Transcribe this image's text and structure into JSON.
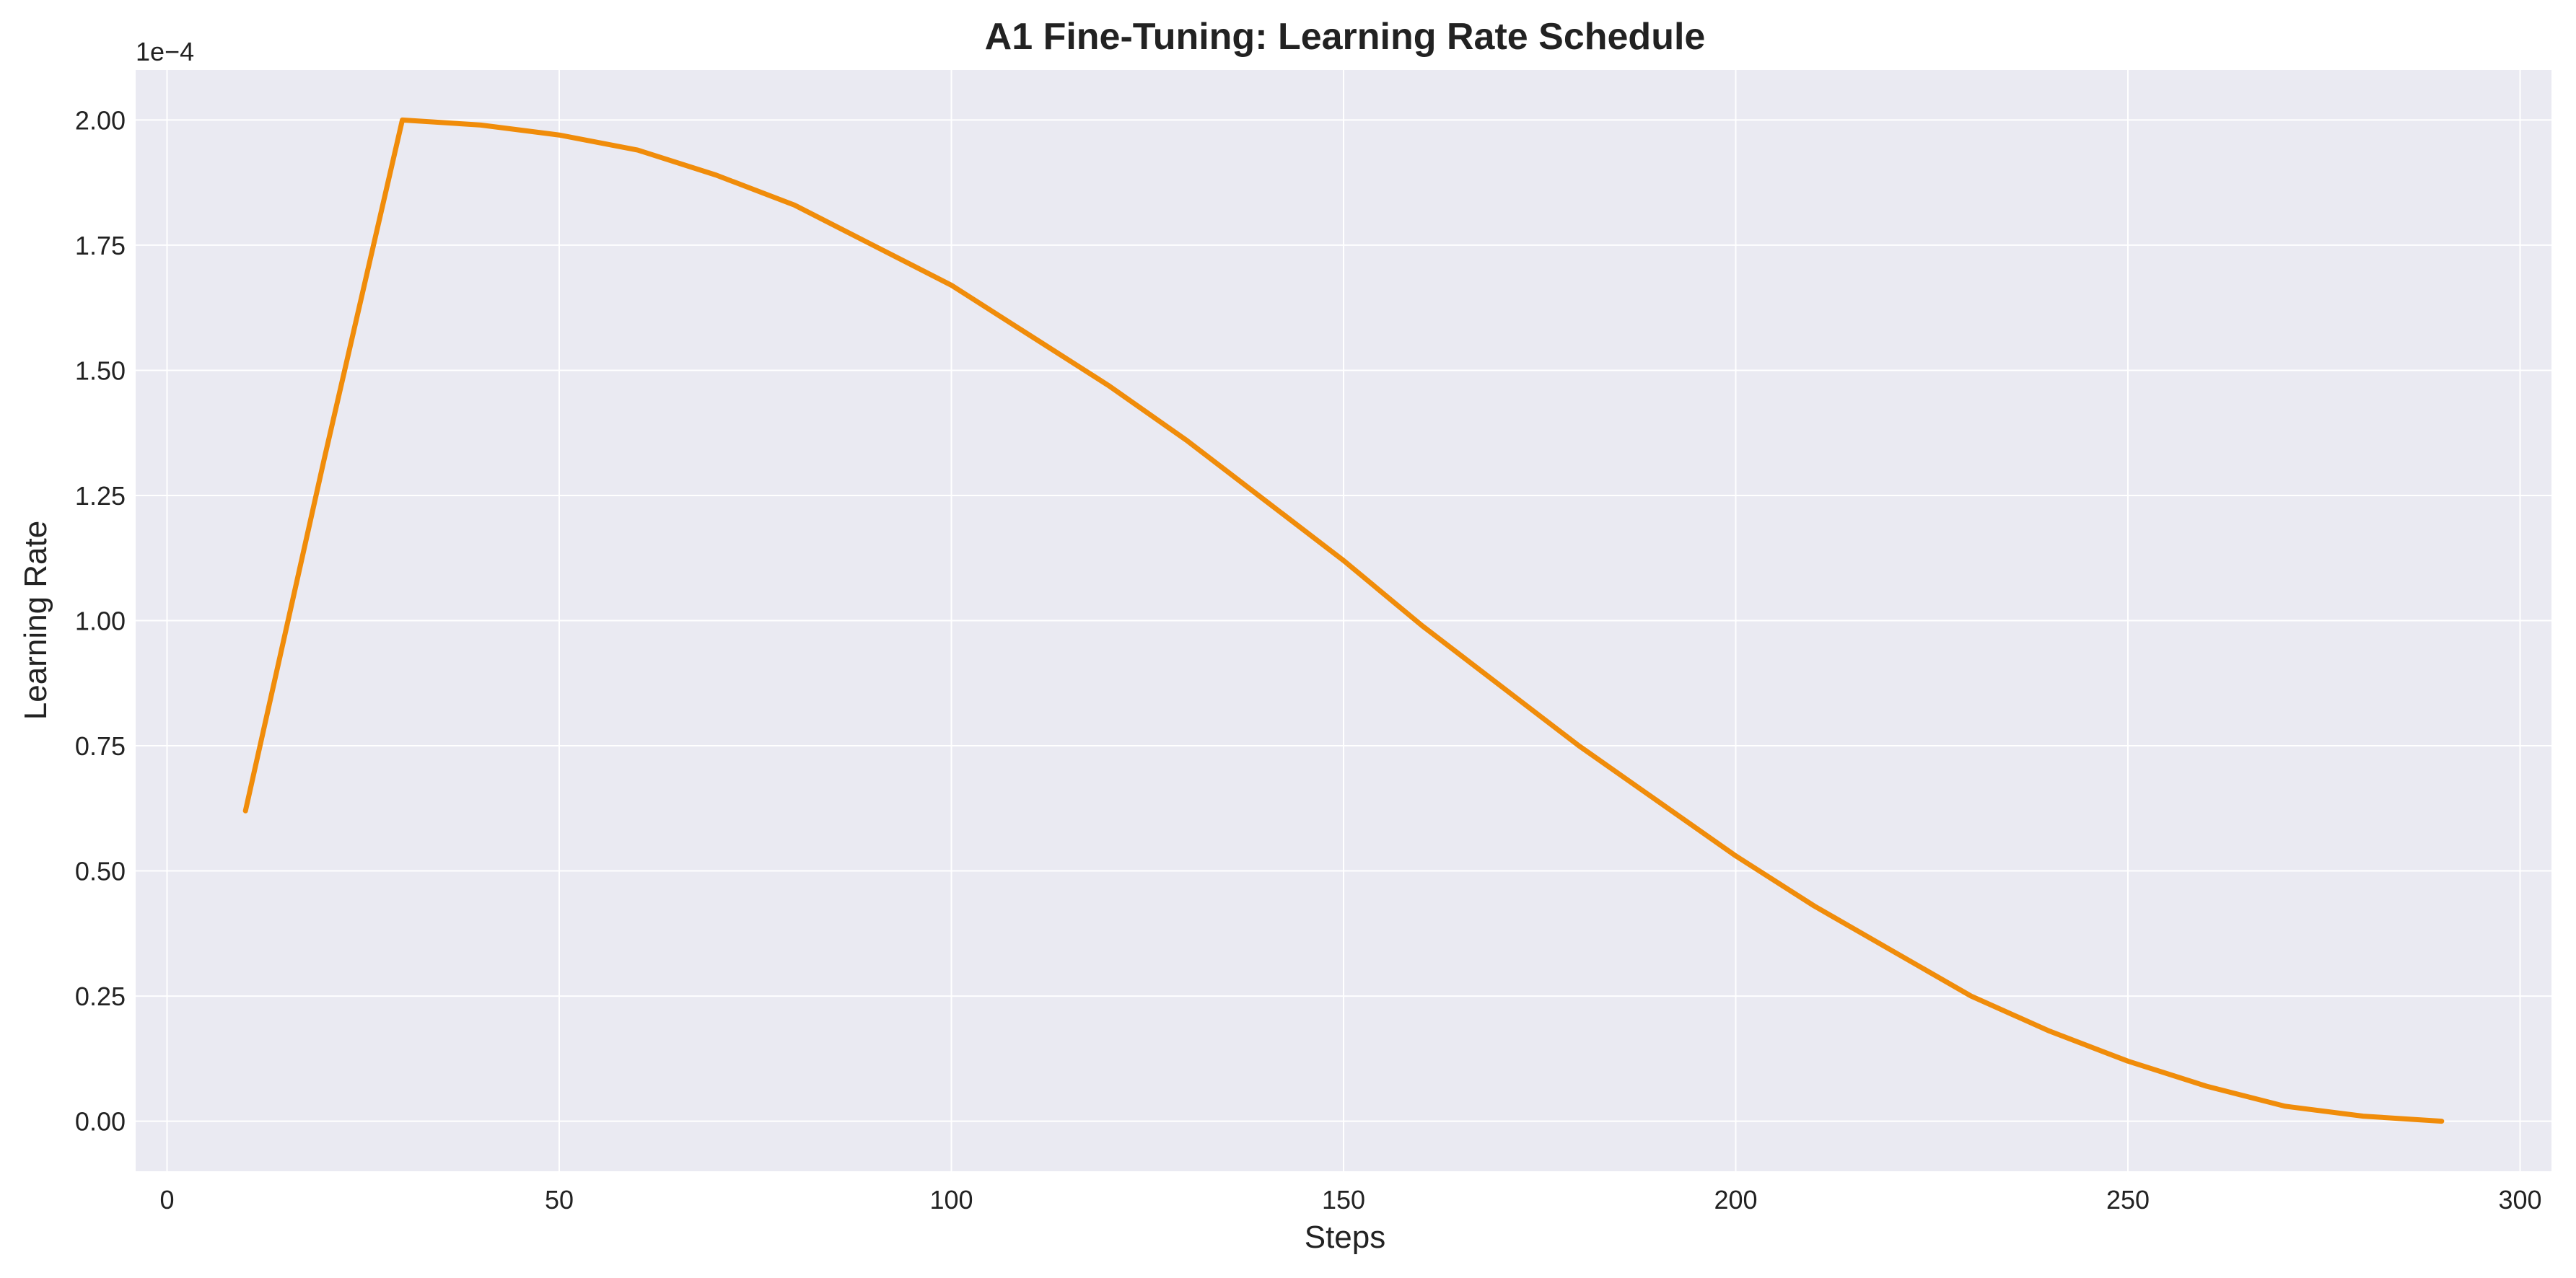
{
  "chart_data": {
    "type": "line",
    "title": "A1 Fine-Tuning: Learning Rate Schedule",
    "xlabel": "Steps",
    "ylabel": "Learning Rate",
    "y_offset_label": "1e−4",
    "xlim": [
      -4,
      304
    ],
    "ylim": [
      -0.1,
      2.1
    ],
    "xticks": [
      0,
      50,
      100,
      150,
      200,
      250,
      300
    ],
    "xtick_labels": [
      "0",
      "50",
      "100",
      "150",
      "200",
      "250",
      "300"
    ],
    "yticks": [
      0,
      0.25,
      0.5,
      0.75,
      1.0,
      1.25,
      1.5,
      1.75,
      2.0
    ],
    "ytick_labels": [
      "0.00",
      "0.25",
      "0.50",
      "0.75",
      "1.00",
      "1.25",
      "1.50",
      "1.75",
      "2.00"
    ],
    "grid": true,
    "series": [
      {
        "color": "#f08c0a",
        "x": [
          10,
          20,
          30,
          40,
          50,
          60,
          70,
          80,
          90,
          100,
          110,
          120,
          130,
          140,
          150,
          160,
          170,
          180,
          190,
          200,
          210,
          220,
          230,
          240,
          250,
          260,
          270,
          280,
          290
        ],
        "y": [
          0.62,
          1.32,
          2.0,
          1.99,
          1.97,
          1.94,
          1.89,
          1.83,
          1.75,
          1.67,
          1.57,
          1.47,
          1.36,
          1.24,
          1.12,
          0.99,
          0.87,
          0.75,
          0.64,
          0.53,
          0.43,
          0.34,
          0.25,
          0.18,
          0.12,
          0.07,
          0.03,
          0.01,
          0.0
        ]
      }
    ],
    "colors": {
      "plot_background": "#eaeaf2",
      "grid": "#ffffff",
      "text": "#222222"
    }
  }
}
